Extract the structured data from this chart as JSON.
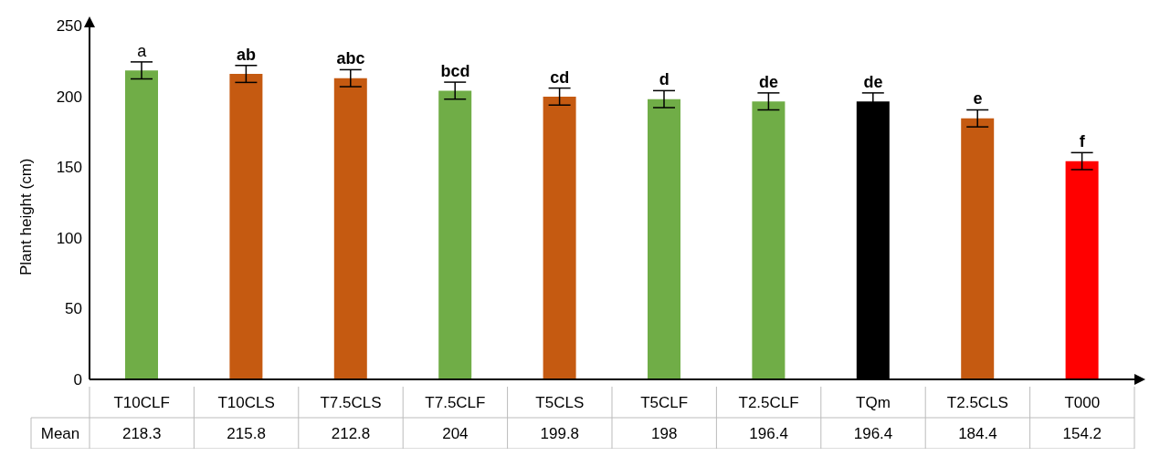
{
  "chart_data": {
    "type": "bar",
    "ylabel": "Plant height (cm)",
    "categories": [
      "T10CLF",
      "T10CLS",
      "T7.5CLS",
      "T7.5CLF",
      "T5CLS",
      "T5CLF",
      "T2.5CLF",
      "TQm",
      "T2.5CLS",
      "T000"
    ],
    "values": [
      218.3,
      215.8,
      212.8,
      204,
      199.8,
      198,
      196.4,
      196.4,
      184.4,
      154.2
    ],
    "errors": [
      6,
      6,
      6,
      6,
      6,
      6,
      6,
      6,
      6,
      6
    ],
    "colors": [
      "#70ad47",
      "#c55a11",
      "#c55a11",
      "#70ad47",
      "#c55a11",
      "#70ad47",
      "#70ad47",
      "#000000",
      "#c55a11",
      "#ff0000"
    ],
    "ylim": [
      0,
      250
    ],
    "yticks": [
      0,
      50,
      100,
      150,
      200,
      250
    ],
    "grid": false,
    "legend": false,
    "data_labels": true,
    "annotations": [
      "Mean",
      {
        "text": "a",
        "x": "T10CLF",
        "y": 224.3
      },
      {
        "text": "ab",
        "x": "T10CLS",
        "y": 221.8
      },
      {
        "text": "abc",
        "x": "T7.5CLS",
        "y": 218.8
      },
      {
        "text": "bcd",
        "x": "T7.5CLF",
        "y": 210
      },
      {
        "text": "cd",
        "x": "T5CLS",
        "y": 205.8
      },
      {
        "text": "d",
        "x": "T5CLF",
        "y": 204
      },
      {
        "text": "de",
        "x": "T2.5CLF",
        "y": 202.4
      },
      {
        "text": "de",
        "x": "TQm",
        "y": 202.4
      },
      {
        "text": "e",
        "x": "T2.5CLS",
        "y": 190.4
      },
      {
        "text": "f",
        "x": "T000",
        "y": 160.2
      }
    ]
  }
}
